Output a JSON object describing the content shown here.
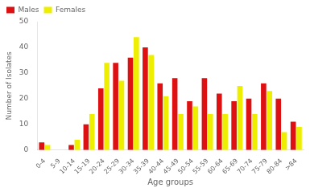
{
  "chart_data": {
    "type": "bar",
    "xlabel": "Age groups",
    "ylabel": "Number of Isolates",
    "categories": [
      "0-4",
      "5-9",
      "10-14",
      "15-19",
      "20-24",
      "25-29",
      "30-34",
      "35-39",
      "40-44",
      "45-49",
      "50-54",
      "55-59",
      "60-64",
      "65-69",
      "70-74",
      "75-79",
      "80-84",
      ">84"
    ],
    "series": [
      {
        "name": "Males",
        "color": "#dd1111",
        "values": [
          3,
          0,
          2,
          10,
          24,
          34,
          36,
          40,
          26,
          28,
          19,
          28,
          22,
          19,
          20,
          26,
          20,
          11
        ]
      },
      {
        "name": "Females",
        "color": "#eeee00",
        "values": [
          2,
          0,
          4,
          14,
          34,
          27,
          44,
          37,
          21,
          14,
          17,
          14,
          14,
          25,
          14,
          23,
          7,
          9
        ]
      }
    ],
    "ylim": [
      0,
      50
    ],
    "yticks": [
      0,
      10,
      20,
      30,
      40,
      50
    ],
    "grid": false,
    "legend": "upper left"
  }
}
